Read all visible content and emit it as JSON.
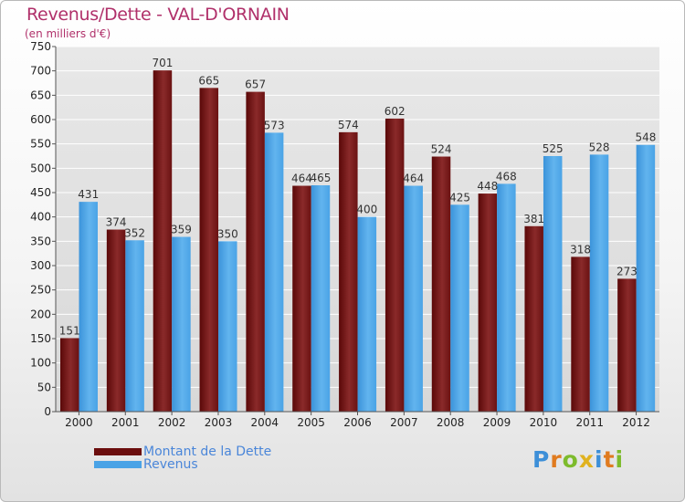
{
  "title": "Revenus/Dette - VAL-D'ORNAIN",
  "subtitle": "(en milliers d'€)",
  "logo_text": "Proxiti",
  "colors": {
    "debt": "#6b0d0d",
    "revenue": "#4aa3e6",
    "title": "#b0306a",
    "legend_text": "#4a86d9",
    "gridline": "#ffffff",
    "plot_background": "#dedede"
  },
  "chart_data": {
    "type": "bar",
    "categories": [
      "2000",
      "2001",
      "2002",
      "2003",
      "2004",
      "2005",
      "2006",
      "2007",
      "2008",
      "2009",
      "2010",
      "2011",
      "2012"
    ],
    "series": [
      {
        "name": "Montant de la Dette",
        "values": [
          151,
          374,
          701,
          665,
          657,
          464,
          574,
          602,
          524,
          448,
          381,
          318,
          273
        ]
      },
      {
        "name": "Revenus",
        "values": [
          431,
          352,
          359,
          350,
          573,
          465,
          400,
          464,
          425,
          468,
          525,
          528,
          548
        ]
      }
    ],
    "title": "Revenus/Dette - VAL-D'ORNAIN",
    "xlabel": "",
    "ylabel": "",
    "ylim": [
      0,
      750
    ],
    "yticks": [
      0,
      50,
      100,
      150,
      200,
      250,
      300,
      350,
      400,
      450,
      500,
      550,
      600,
      650,
      700,
      750
    ],
    "grid": true,
    "legend_position": "bottom-left"
  }
}
